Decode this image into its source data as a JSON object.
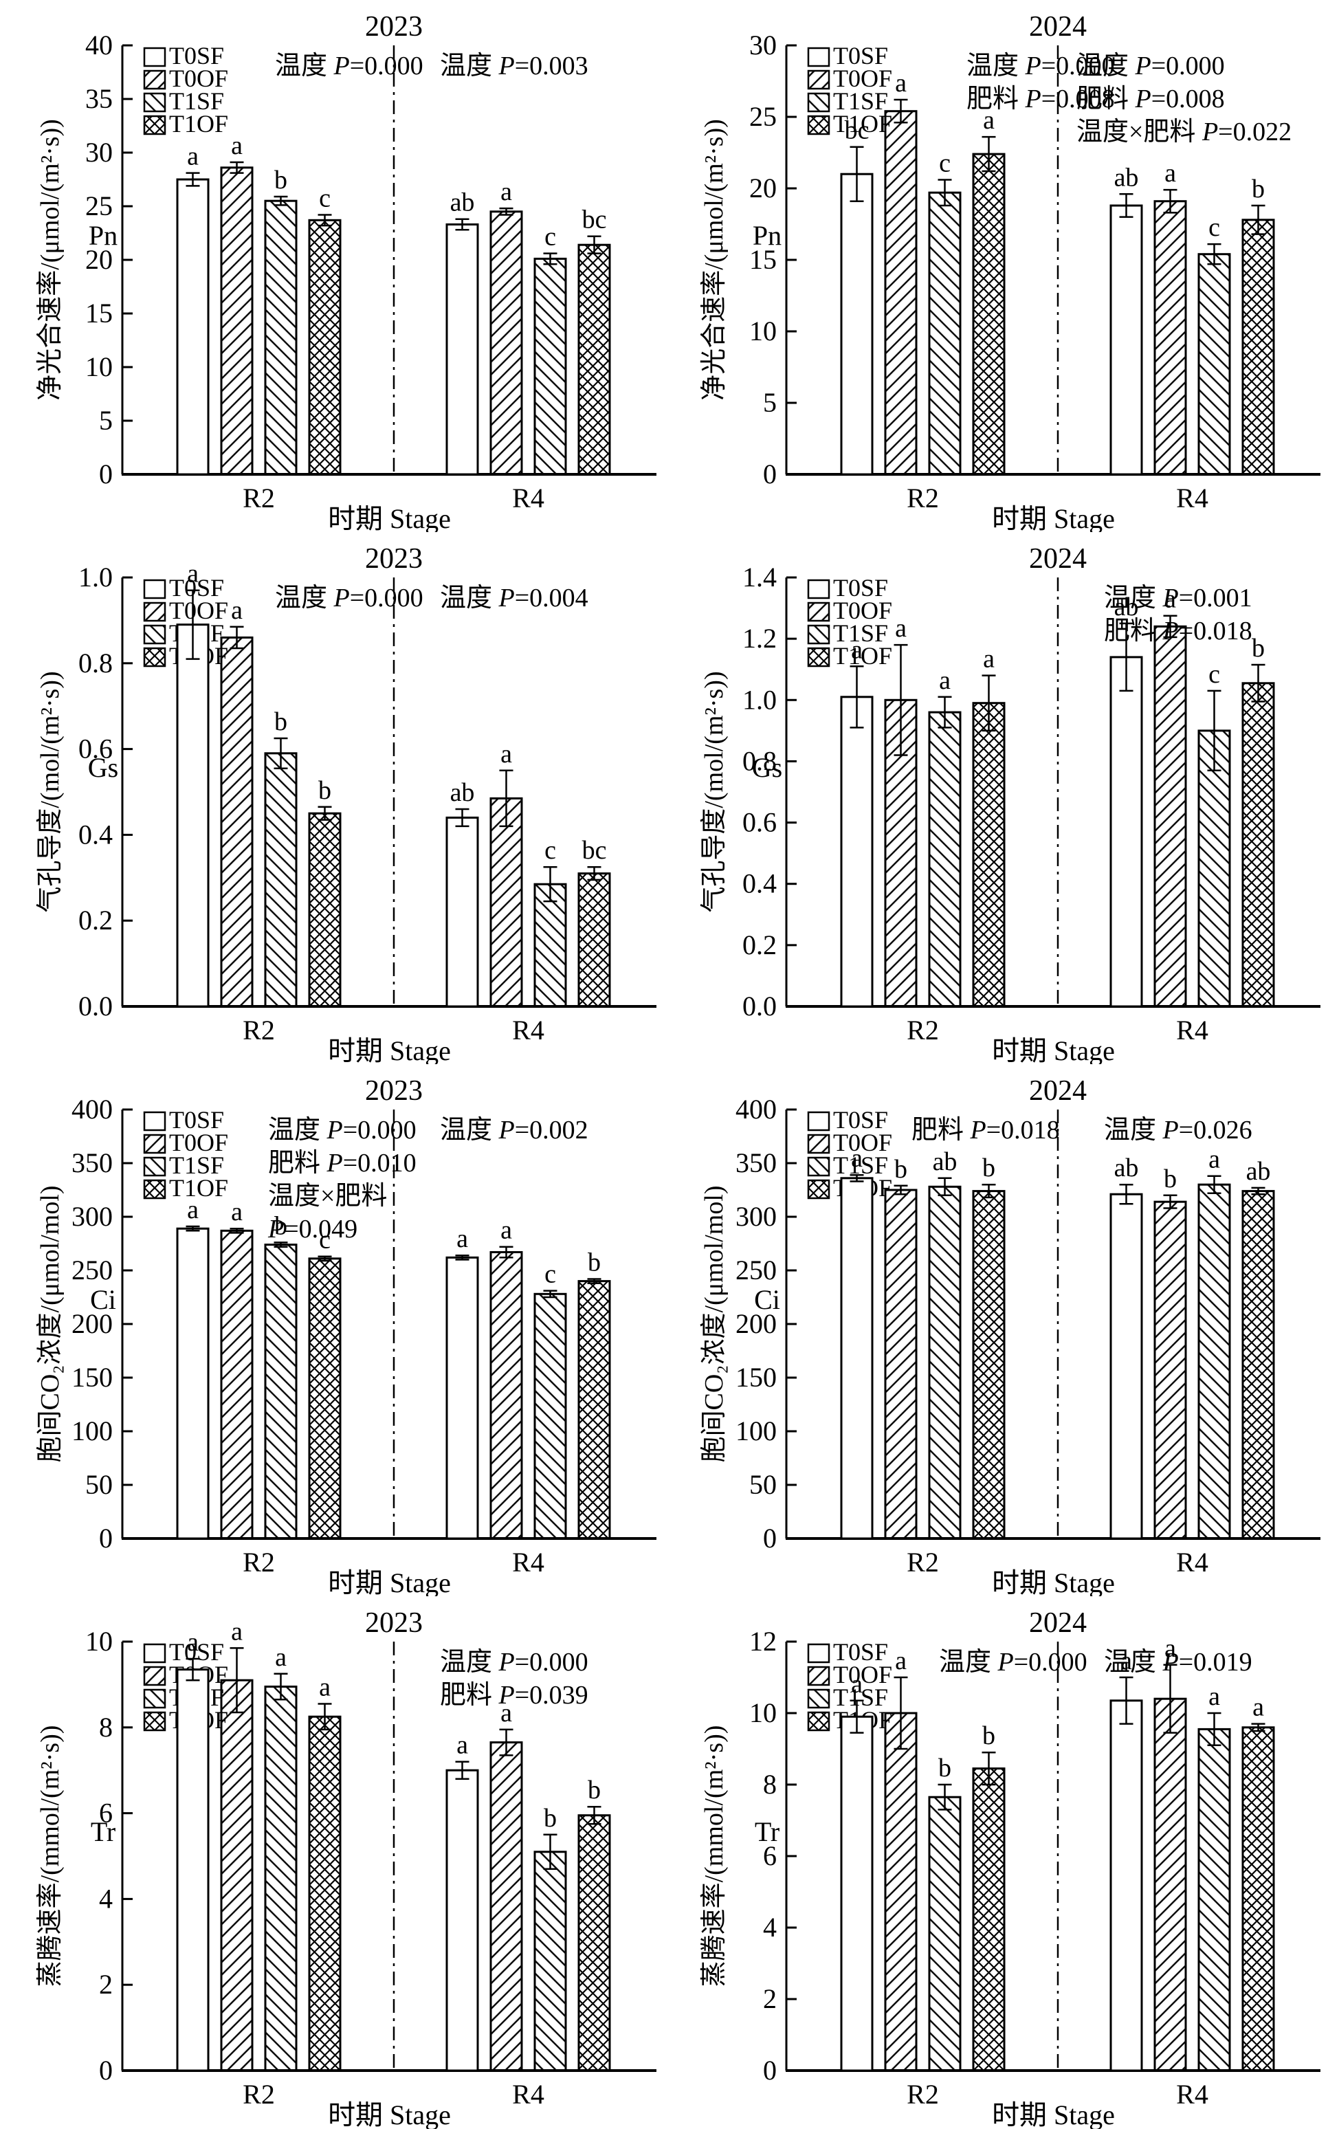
{
  "figure": {
    "background": "#ffffff",
    "ink_color": "#000000",
    "xlabel": "时期 Stage",
    "categories": [
      "R2",
      "R4"
    ],
    "legend_items": [
      {
        "label": "T0SF",
        "pattern": "plain"
      },
      {
        "label": "T0OF",
        "pattern": "hatch-fwd"
      },
      {
        "label": "T1SF",
        "pattern": "hatch-back"
      },
      {
        "label": "T1OF",
        "pattern": "crosshatch"
      }
    ]
  },
  "chart_data": [
    {
      "id": "pn-2023",
      "type": "bar",
      "title": "2023",
      "ylabel": "净光合速率/(μmol/(m²·s))",
      "ylabel_sub": "Pn",
      "xlabel": "时期 Stage",
      "categories": [
        "R2",
        "R4"
      ],
      "ylim": [
        0,
        40
      ],
      "ytick_step": 5,
      "y_decimals": 0,
      "series": [
        {
          "name": "T0SF",
          "pattern": "plain",
          "values": [
            27.5,
            23.3
          ],
          "errors": [
            0.6,
            0.5
          ],
          "letters": [
            "a",
            "ab"
          ]
        },
        {
          "name": "T0OF",
          "pattern": "hatch-fwd",
          "values": [
            28.6,
            24.5
          ],
          "errors": [
            0.5,
            0.3
          ],
          "letters": [
            "a",
            "a"
          ]
        },
        {
          "name": "T1SF",
          "pattern": "hatch-back",
          "values": [
            25.5,
            20.1
          ],
          "errors": [
            0.4,
            0.5
          ],
          "letters": [
            "b",
            "c"
          ]
        },
        {
          "name": "T1OF",
          "pattern": "crosshatch",
          "values": [
            23.7,
            21.4
          ],
          "errors": [
            0.5,
            0.8
          ],
          "letters": [
            "c",
            "bc"
          ]
        }
      ],
      "annotations": {
        "left": {
          "x": 400,
          "lines": [
            {
              "t": "温度",
              "p": "0.000"
            }
          ]
        },
        "right": {
          "x": 640,
          "lines": [
            {
              "t": "温度",
              "p": "0.003"
            }
          ]
        }
      }
    },
    {
      "id": "pn-2024",
      "type": "bar",
      "title": "2024",
      "ylabel": "净光合速率/(μmol/(m²·s))",
      "ylabel_sub": "Pn",
      "xlabel": "时期 Stage",
      "categories": [
        "R2",
        "R4"
      ],
      "ylim": [
        0,
        30
      ],
      "ytick_step": 5,
      "y_decimals": 0,
      "series": [
        {
          "name": "T0SF",
          "pattern": "plain",
          "values": [
            21.0,
            18.8
          ],
          "errors": [
            1.9,
            0.8
          ],
          "letters": [
            "bc",
            "ab"
          ]
        },
        {
          "name": "T0OF",
          "pattern": "hatch-fwd",
          "values": [
            25.4,
            19.1
          ],
          "errors": [
            0.8,
            0.8
          ],
          "letters": [
            "a",
            "a"
          ]
        },
        {
          "name": "T1SF",
          "pattern": "hatch-back",
          "values": [
            19.7,
            15.4
          ],
          "errors": [
            0.9,
            0.7
          ],
          "letters": [
            "c",
            "c"
          ]
        },
        {
          "name": "T1OF",
          "pattern": "crosshatch",
          "values": [
            22.4,
            17.8
          ],
          "errors": [
            1.2,
            1.0
          ],
          "letters": [
            "a",
            "b"
          ]
        }
      ],
      "annotations": {
        "left": {
          "x": 440,
          "lines": [
            {
              "t": "温度",
              "p": "0.000"
            },
            {
              "t": "肥料",
              "p": "0.008"
            }
          ]
        },
        "right": {
          "x": 600,
          "lines": [
            {
              "t": "温度",
              "p": "0.000"
            },
            {
              "t": "肥料",
              "p": "0.008"
            },
            {
              "t": "温度×肥料",
              "p": "0.022"
            }
          ]
        }
      }
    },
    {
      "id": "gs-2023",
      "type": "bar",
      "title": "2023",
      "ylabel": "气孔导度/(mol/(m²·s))",
      "ylabel_sub": "Gs",
      "xlabel": "时期 Stage",
      "categories": [
        "R2",
        "R4"
      ],
      "ylim": [
        0,
        1.0
      ],
      "ytick_step": 0.2,
      "y_decimals": 1,
      "series": [
        {
          "name": "T0SF",
          "pattern": "plain",
          "values": [
            0.89,
            0.44
          ],
          "errors": [
            0.08,
            0.02
          ],
          "letters": [
            "a",
            "ab"
          ]
        },
        {
          "name": "T0OF",
          "pattern": "hatch-fwd",
          "values": [
            0.86,
            0.485
          ],
          "errors": [
            0.025,
            0.065
          ],
          "letters": [
            "a",
            "a"
          ]
        },
        {
          "name": "T1SF",
          "pattern": "hatch-back",
          "values": [
            0.59,
            0.285
          ],
          "errors": [
            0.035,
            0.04
          ],
          "letters": [
            "b",
            "c"
          ]
        },
        {
          "name": "T1OF",
          "pattern": "crosshatch",
          "values": [
            0.45,
            0.31
          ],
          "errors": [
            0.015,
            0.015
          ],
          "letters": [
            "b",
            "bc"
          ]
        }
      ],
      "annotations": {
        "left": {
          "x": 400,
          "lines": [
            {
              "t": "温度",
              "p": "0.000"
            }
          ]
        },
        "right": {
          "x": 640,
          "lines": [
            {
              "t": "温度",
              "p": "0.004"
            }
          ]
        }
      }
    },
    {
      "id": "gs-2024",
      "type": "bar",
      "title": "2024",
      "ylabel": "气孔导度/(mol/(m²·s))",
      "ylabel_sub": "Gs",
      "xlabel": "时期 Stage",
      "categories": [
        "R2",
        "R4"
      ],
      "ylim": [
        0,
        1.4
      ],
      "ytick_step": 0.2,
      "y_decimals": 1,
      "series": [
        {
          "name": "T0SF",
          "pattern": "plain",
          "values": [
            1.01,
            1.14
          ],
          "errors": [
            0.1,
            0.11
          ],
          "letters": [
            "a",
            "ab"
          ]
        },
        {
          "name": "T0OF",
          "pattern": "hatch-fwd",
          "values": [
            1.0,
            1.24
          ],
          "errors": [
            0.18,
            0.035
          ],
          "letters": [
            "a",
            "a"
          ]
        },
        {
          "name": "T1SF",
          "pattern": "hatch-back",
          "values": [
            0.96,
            0.9
          ],
          "errors": [
            0.05,
            0.13
          ],
          "letters": [
            "a",
            "c"
          ]
        },
        {
          "name": "T1OF",
          "pattern": "crosshatch",
          "values": [
            0.99,
            1.055
          ],
          "errors": [
            0.09,
            0.06
          ],
          "letters": [
            "a",
            "b"
          ]
        }
      ],
      "annotations": {
        "right": {
          "x": 640,
          "lines": [
            {
              "t": "温度",
              "p": "0.001"
            },
            {
              "t": "肥料",
              "p": "0.018"
            }
          ]
        }
      }
    },
    {
      "id": "ci-2023",
      "type": "bar",
      "title": "2023",
      "ylabel": "胞间CO₂浓度/(μmol/mol)",
      "ylabel_sub": "Ci",
      "xlabel": "时期 Stage",
      "categories": [
        "R2",
        "R4"
      ],
      "ylim": [
        0,
        400
      ],
      "ytick_step": 50,
      "y_decimals": 0,
      "series": [
        {
          "name": "T0SF",
          "pattern": "plain",
          "values": [
            289,
            262
          ],
          "errors": [
            2,
            2
          ],
          "letters": [
            "a",
            "a"
          ]
        },
        {
          "name": "T0OF",
          "pattern": "hatch-fwd",
          "values": [
            287,
            267
          ],
          "errors": [
            2,
            5
          ],
          "letters": [
            "a",
            "a"
          ]
        },
        {
          "name": "T1SF",
          "pattern": "hatch-back",
          "values": [
            274,
            228
          ],
          "errors": [
            2,
            3
          ],
          "letters": [
            "b",
            "c"
          ]
        },
        {
          "name": "T1OF",
          "pattern": "crosshatch",
          "values": [
            261,
            240
          ],
          "errors": [
            2,
            2
          ],
          "letters": [
            "c",
            "b"
          ]
        }
      ],
      "annotations": {
        "left": {
          "x": 390,
          "lines": [
            {
              "t": "温度",
              "p": "0.000"
            },
            {
              "t": "肥料",
              "p": "0.010"
            },
            {
              "t": "温度×肥料"
            },
            {
              "p": "0.049"
            }
          ]
        },
        "right": {
          "x": 640,
          "lines": [
            {
              "t": "温度",
              "p": "0.002"
            }
          ]
        }
      }
    },
    {
      "id": "ci-2024",
      "type": "bar",
      "title": "2024",
      "ylabel": "胞间CO₂浓度/(μmol/mol)",
      "ylabel_sub": "Ci",
      "xlabel": "时期 Stage",
      "categories": [
        "R2",
        "R4"
      ],
      "ylim": [
        0,
        400
      ],
      "ytick_step": 50,
      "y_decimals": 0,
      "series": [
        {
          "name": "T0SF",
          "pattern": "plain",
          "values": [
            336,
            321
          ],
          "errors": [
            3,
            9
          ],
          "letters": [
            "a",
            "ab"
          ]
        },
        {
          "name": "T0OF",
          "pattern": "hatch-fwd",
          "values": [
            325,
            314
          ],
          "errors": [
            4,
            6
          ],
          "letters": [
            "b",
            "b"
          ]
        },
        {
          "name": "T1SF",
          "pattern": "hatch-back",
          "values": [
            328,
            330
          ],
          "errors": [
            8,
            8
          ],
          "letters": [
            "ab",
            "a"
          ]
        },
        {
          "name": "T1OF",
          "pattern": "crosshatch",
          "values": [
            324,
            324
          ],
          "errors": [
            6,
            3
          ],
          "letters": [
            "b",
            "ab"
          ]
        }
      ],
      "annotations": {
        "left": {
          "x": 360,
          "lines": [
            {
              "t": "肥料",
              "p": "0.018"
            }
          ]
        },
        "right": {
          "x": 640,
          "lines": [
            {
              "t": "温度",
              "p": "0.026"
            }
          ]
        }
      }
    },
    {
      "id": "tr-2023",
      "type": "bar",
      "title": "2023",
      "ylabel": "蒸腾速率/(mmol/(m²·s))",
      "ylabel_sub": "Tr",
      "xlabel": "时期 Stage",
      "categories": [
        "R2",
        "R4"
      ],
      "ylim": [
        0,
        10
      ],
      "ytick_step": 2,
      "y_decimals": 0,
      "series": [
        {
          "name": "T0SF",
          "pattern": "plain",
          "values": [
            9.35,
            7.0
          ],
          "errors": [
            0.25,
            0.2
          ],
          "letters": [
            "a",
            "a"
          ]
        },
        {
          "name": "T0OF",
          "pattern": "hatch-fwd",
          "values": [
            9.1,
            7.65
          ],
          "errors": [
            0.75,
            0.3
          ],
          "letters": [
            "a",
            "a"
          ]
        },
        {
          "name": "T1SF",
          "pattern": "hatch-back",
          "values": [
            8.95,
            5.1
          ],
          "errors": [
            0.3,
            0.4
          ],
          "letters": [
            "a",
            "b"
          ]
        },
        {
          "name": "T1OF",
          "pattern": "crosshatch",
          "values": [
            8.25,
            5.95
          ],
          "errors": [
            0.3,
            0.2
          ],
          "letters": [
            "a",
            "b"
          ]
        }
      ],
      "annotations": {
        "right": {
          "x": 640,
          "lines": [
            {
              "t": "温度",
              "p": "0.000"
            },
            {
              "t": "肥料",
              "p": "0.039"
            }
          ]
        }
      }
    },
    {
      "id": "tr-2024",
      "type": "bar",
      "title": "2024",
      "ylabel": "蒸腾速率/(mmol/(m²·s))",
      "ylabel_sub": "Tr",
      "xlabel": "时期 Stage",
      "categories": [
        "R2",
        "R4"
      ],
      "ylim": [
        0,
        12
      ],
      "ytick_step": 2,
      "y_decimals": 0,
      "series": [
        {
          "name": "T0SF",
          "pattern": "plain",
          "values": [
            9.9,
            10.35
          ],
          "errors": [
            0.45,
            0.65
          ],
          "letters": [
            "a",
            "a"
          ]
        },
        {
          "name": "T0OF",
          "pattern": "hatch-fwd",
          "values": [
            10.0,
            10.4
          ],
          "errors": [
            1.0,
            0.95
          ],
          "letters": [
            "a",
            "a"
          ]
        },
        {
          "name": "T1SF",
          "pattern": "hatch-back",
          "values": [
            7.65,
            9.55
          ],
          "errors": [
            0.35,
            0.45
          ],
          "letters": [
            "b",
            "a"
          ]
        },
        {
          "name": "T1OF",
          "pattern": "crosshatch",
          "values": [
            8.45,
            9.6
          ],
          "errors": [
            0.45,
            0.1
          ],
          "letters": [
            "b",
            "a"
          ]
        }
      ],
      "annotations": {
        "left": {
          "x": 400,
          "lines": [
            {
              "t": "温度",
              "p": "0.000"
            }
          ]
        },
        "right": {
          "x": 640,
          "lines": [
            {
              "t": "温度",
              "p": "0.019"
            }
          ]
        }
      }
    }
  ]
}
